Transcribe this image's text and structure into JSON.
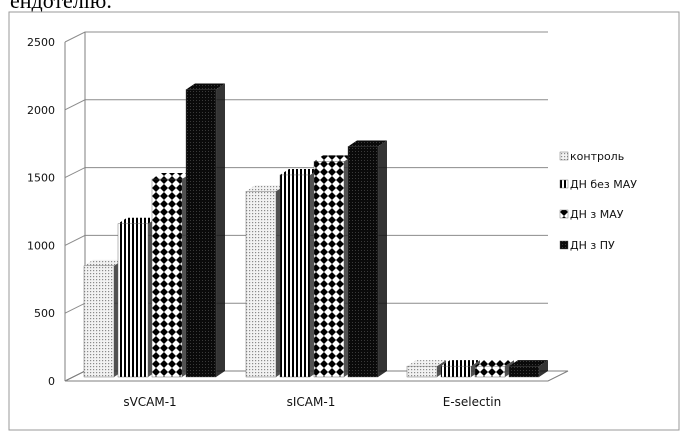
{
  "page": {
    "cut_heading_fragment": "ендотелію."
  },
  "chart_data": {
    "type": "bar",
    "three_d": true,
    "categories": [
      "sVCAM-1",
      "sICAM-1",
      "E-selectin"
    ],
    "series": [
      {
        "name": "контроль",
        "pattern": "dots-light",
        "values": [
          820,
          1370,
          80
        ]
      },
      {
        "name": "ДН без МАУ",
        "pattern": "vertical-stripes",
        "values": [
          1130,
          1490,
          80
        ]
      },
      {
        "name": "ДН з МАУ",
        "pattern": "checker-diamond",
        "values": [
          1460,
          1590,
          80
        ]
      },
      {
        "name": "ДН з ПУ",
        "pattern": "dark-dots",
        "values": [
          2120,
          1700,
          80
        ]
      }
    ],
    "ylim": [
      0,
      2500
    ],
    "yticks": [
      0,
      500,
      1000,
      1500,
      2000,
      2500
    ],
    "grid": true,
    "legend_position": "right",
    "colors": {
      "axis": "#7f7f7f",
      "grid": "#8c8c8c",
      "bar_dark": "#0a0a0a"
    }
  }
}
